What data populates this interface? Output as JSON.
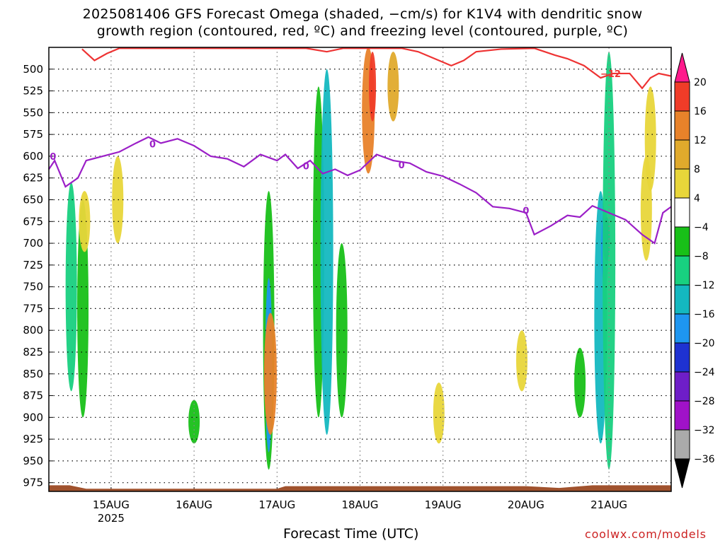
{
  "title_line1": "2025081406 GFS Forecast Omega (shaded, −cm/s) for K1V4 with dendritic snow",
  "title_line2": "growth region (contoured, red, ºC) and freezing level (contoured, purple, ºC)",
  "credit": "coolwx.com/models",
  "chart_data": {
    "type": "heatmap",
    "title": "2025081406 GFS Forecast Omega (shaded, −cm/s) for K1V4 with dendritic snow growth region (contoured, red, ºC) and freezing level (contoured, purple, ºC)",
    "xlabel": "Forecast Time (UTC)",
    "ylabel": "",
    "x_ticks": [
      {
        "label": "15AUG",
        "sub": "2025",
        "day": 15
      },
      {
        "label": "16AUG",
        "sub": "",
        "day": 16
      },
      {
        "label": "17AUG",
        "sub": "",
        "day": 17
      },
      {
        "label": "18AUG",
        "sub": "",
        "day": 18
      },
      {
        "label": "19AUG",
        "sub": "",
        "day": 19
      },
      {
        "label": "20AUG",
        "sub": "",
        "day": 20
      },
      {
        "label": "21AUG",
        "sub": "",
        "day": 21
      }
    ],
    "xlim_days": [
      14.25,
      21.75
    ],
    "y_ticks": [
      500,
      525,
      550,
      575,
      600,
      625,
      650,
      675,
      700,
      725,
      750,
      775,
      800,
      825,
      850,
      875,
      900,
      925,
      950,
      975
    ],
    "ylim": [
      475,
      985
    ],
    "y_reversed": true,
    "grid": true,
    "colorbar": {
      "labels": [
        "20",
        "16",
        "12",
        "8",
        "4",
        "−4",
        "−8",
        "−12",
        "−16",
        "−20",
        "−24",
        "−28",
        "−32",
        "−36"
      ],
      "colors": [
        "#ff1a8c",
        "#f03c28",
        "#e8822a",
        "#e0aa2c",
        "#e8d63a",
        "#ffffff",
        "#18c018",
        "#18d080",
        "#14b8c0",
        "#1e96f0",
        "#1e32d2",
        "#6e1ec8",
        "#a012c8",
        "#aaaaaa",
        "#000000"
      ]
    },
    "freezing_level": {
      "label": "0",
      "color": "#9b1fc7",
      "points": [
        [
          14.25,
          615
        ],
        [
          14.32,
          605
        ],
        [
          14.45,
          635
        ],
        [
          14.6,
          625
        ],
        [
          14.7,
          605
        ],
        [
          14.9,
          600
        ],
        [
          15.1,
          595
        ],
        [
          15.3,
          585
        ],
        [
          15.45,
          578
        ],
        [
          15.6,
          585
        ],
        [
          15.8,
          580
        ],
        [
          16.0,
          588
        ],
        [
          16.2,
          600
        ],
        [
          16.4,
          603
        ],
        [
          16.6,
          612
        ],
        [
          16.8,
          598
        ],
        [
          17.0,
          605
        ],
        [
          17.1,
          598
        ],
        [
          17.25,
          614
        ],
        [
          17.4,
          605
        ],
        [
          17.55,
          620
        ],
        [
          17.7,
          615
        ],
        [
          17.85,
          622
        ],
        [
          18.0,
          616
        ],
        [
          18.2,
          598
        ],
        [
          18.4,
          605
        ],
        [
          18.6,
          608
        ],
        [
          18.8,
          618
        ],
        [
          19.0,
          623
        ],
        [
          19.2,
          632
        ],
        [
          19.4,
          642
        ],
        [
          19.6,
          658
        ],
        [
          19.8,
          660
        ],
        [
          20.0,
          665
        ],
        [
          20.1,
          690
        ],
        [
          20.3,
          680
        ],
        [
          20.5,
          668
        ],
        [
          20.65,
          670
        ],
        [
          20.8,
          657
        ],
        [
          21.0,
          665
        ],
        [
          21.2,
          673
        ],
        [
          21.4,
          690
        ],
        [
          21.55,
          700
        ],
        [
          21.65,
          665
        ],
        [
          21.75,
          658
        ]
      ]
    },
    "dgz_minus12": {
      "label": "−12",
      "color": "#ee3333",
      "points": [
        [
          14.65,
          477
        ],
        [
          14.8,
          490
        ],
        [
          14.95,
          482
        ],
        [
          15.1,
          476
        ],
        [
          16.6,
          476
        ],
        [
          17.35,
          476
        ],
        [
          17.6,
          480
        ],
        [
          17.8,
          476
        ],
        [
          18.5,
          476
        ],
        [
          18.7,
          480
        ],
        [
          18.9,
          488
        ],
        [
          19.1,
          496
        ],
        [
          19.25,
          490
        ],
        [
          19.4,
          480
        ],
        [
          19.7,
          477
        ],
        [
          20.1,
          476
        ],
        [
          20.35,
          484
        ],
        [
          20.5,
          488
        ],
        [
          20.7,
          496
        ],
        [
          20.9,
          510
        ],
        [
          21.05,
          505
        ],
        [
          21.25,
          505
        ],
        [
          21.4,
          522
        ],
        [
          21.5,
          510
        ],
        [
          21.6,
          505
        ],
        [
          21.75,
          508
        ]
      ]
    },
    "omega_regions": [
      {
        "t": 14.52,
        "p0": 630,
        "p1": 870,
        "v": -8
      },
      {
        "t": 14.66,
        "p0": 650,
        "p1": 900,
        "v": -6
      },
      {
        "t": 14.68,
        "p0": 640,
        "p1": 710,
        "v": 6
      },
      {
        "t": 15.08,
        "p0": 600,
        "p1": 700,
        "v": 5
      },
      {
        "t": 16.0,
        "p0": 880,
        "p1": 930,
        "v": -6
      },
      {
        "t": 16.9,
        "p0": 640,
        "p1": 960,
        "v": -7
      },
      {
        "t": 16.9,
        "p0": 740,
        "p1": 940,
        "v": -18
      },
      {
        "t": 16.92,
        "p0": 780,
        "p1": 920,
        "v": 14
      },
      {
        "t": 17.5,
        "p0": 520,
        "p1": 900,
        "v": -7
      },
      {
        "t": 17.6,
        "p0": 500,
        "p1": 920,
        "v": -12
      },
      {
        "t": 17.78,
        "p0": 700,
        "p1": 900,
        "v": -6
      },
      {
        "t": 18.1,
        "p0": 475,
        "p1": 620,
        "v": 12
      },
      {
        "t": 18.15,
        "p0": 480,
        "p1": 560,
        "v": 18
      },
      {
        "t": 18.4,
        "p0": 480,
        "p1": 560,
        "v": 8
      },
      {
        "t": 18.95,
        "p0": 860,
        "p1": 930,
        "v": 5
      },
      {
        "t": 19.95,
        "p0": 800,
        "p1": 870,
        "v": 5
      },
      {
        "t": 20.65,
        "p0": 820,
        "p1": 900,
        "v": -7
      },
      {
        "t": 20.9,
        "p0": 640,
        "p1": 930,
        "v": -12
      },
      {
        "t": 20.95,
        "p0": 660,
        "p1": 750,
        "v": -16
      },
      {
        "t": 20.97,
        "p0": 670,
        "p1": 720,
        "v": -22
      },
      {
        "t": 21.0,
        "p0": 480,
        "p1": 960,
        "v": -10
      },
      {
        "t": 21.45,
        "p0": 600,
        "p1": 720,
        "v": 5
      },
      {
        "t": 21.5,
        "p0": 520,
        "p1": 640,
        "v": 7
      }
    ]
  }
}
